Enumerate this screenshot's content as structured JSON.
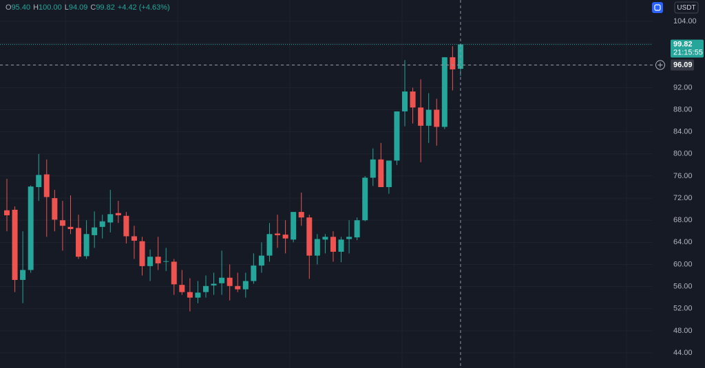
{
  "chart_data": {
    "type": "candlestick",
    "legend": [
      {
        "key": "O",
        "text": "95.40"
      },
      {
        "key": "H",
        "text": "100.00"
      },
      {
        "key": "L",
        "text": "94.09"
      },
      {
        "key": "C",
        "text": "99.82"
      }
    ],
    "change": "+4.42 (+4.63%)",
    "currency": "USDT",
    "countdown": "21:15:55",
    "crosshair_price": 96.09,
    "up_color": "#26a69a",
    "down_color": "#ef5350",
    "grid": true,
    "ylim": [
      41.26,
      107.86
    ],
    "yticks": [
      {
        "value": 44,
        "label": "44.00"
      },
      {
        "value": 48,
        "label": "48.00"
      },
      {
        "value": 52,
        "label": "52.00"
      },
      {
        "value": 56,
        "label": "56.00"
      },
      {
        "value": 60,
        "label": "60.00"
      },
      {
        "value": 64,
        "label": "64.00"
      },
      {
        "value": 68,
        "label": "68.00"
      },
      {
        "value": 72,
        "label": "72.00"
      },
      {
        "value": 76,
        "label": "76.00"
      },
      {
        "value": 80,
        "label": "80.00"
      },
      {
        "value": 84,
        "label": "84.00"
      },
      {
        "value": 88,
        "label": "88.00"
      },
      {
        "value": 92,
        "label": "92.00"
      },
      {
        "value": 96,
        "label": "96.00"
      },
      {
        "value": 100,
        "label": "100.00"
      },
      {
        "value": 104,
        "label": "104.00"
      }
    ],
    "open": [
      69.8,
      69.9,
      57.2,
      59,
      74,
      76.3,
      72,
      68,
      66.8,
      66.6,
      61.5,
      65.3,
      66.8,
      67.6,
      69.3,
      68.8,
      65.1,
      64.2,
      59.7,
      61.4,
      60.5,
      60.5,
      56.3,
      55,
      54,
      55,
      56.2,
      56.6,
      57.6,
      56.1,
      55.5,
      57,
      59.8,
      61.6,
      65.6,
      65.4,
      64.5,
      69.5,
      68.5,
      61.6,
      64.5,
      65,
      62.3,
      64.6,
      64.9,
      68,
      75.7,
      79,
      74,
      78.8,
      87.7,
      91.3,
      88.4,
      85.1,
      88,
      84.9,
      97.5,
      95.4
    ],
    "high": [
      75.5,
      70.5,
      66,
      74.3,
      80,
      79,
      73.5,
      71.5,
      72.5,
      69,
      68,
      69.6,
      69,
      73.5,
      71.5,
      69.5,
      67,
      65,
      62.7,
      65,
      63,
      61,
      59,
      57.5,
      57,
      58,
      58.5,
      62.5,
      60,
      58.5,
      58.5,
      62,
      64,
      67.5,
      69,
      68,
      69.5,
      73,
      69,
      65.5,
      65.5,
      66,
      65,
      68,
      68.5,
      76,
      81,
      82,
      78.5,
      87.5,
      97,
      92,
      93.5,
      91,
      90,
      97.5,
      99.5,
      100
    ],
    "low": [
      66,
      55,
      53,
      58.5,
      71.5,
      65,
      66,
      62.5,
      65.5,
      61,
      61,
      63,
      64.7,
      65.8,
      67.5,
      63.8,
      61,
      58,
      57,
      59,
      58.8,
      54.5,
      54.5,
      51.5,
      53,
      54,
      54.5,
      54.5,
      53.5,
      55,
      54,
      56.5,
      58.5,
      60.5,
      63,
      62,
      64,
      67,
      57.4,
      60,
      62,
      60.5,
      60.4,
      62,
      64.4,
      67.8,
      74.2,
      74,
      72.8,
      78,
      85,
      85.5,
      78.5,
      82,
      81.5,
      84.5,
      91.5,
      94.09
    ],
    "close": [
      68.9,
      57.2,
      59,
      74.1,
      76.2,
      72.2,
      68.1,
      67,
      66.4,
      61.4,
      65.5,
      66.7,
      67.8,
      69.1,
      68.9,
      65.1,
      64.3,
      59.7,
      61.4,
      60.2,
      60.6,
      56.4,
      55,
      54,
      54.9,
      56.1,
      56.5,
      57.6,
      56.1,
      55.5,
      57,
      59.8,
      61.6,
      65.5,
      65.3,
      64.7,
      69.5,
      68.5,
      61.6,
      64.6,
      65,
      62.3,
      64.5,
      65,
      68,
      75.7,
      79,
      74,
      78.8,
      87.7,
      91.3,
      88.4,
      85.1,
      88,
      84.9,
      97.5,
      95.3,
      99.82
    ]
  }
}
